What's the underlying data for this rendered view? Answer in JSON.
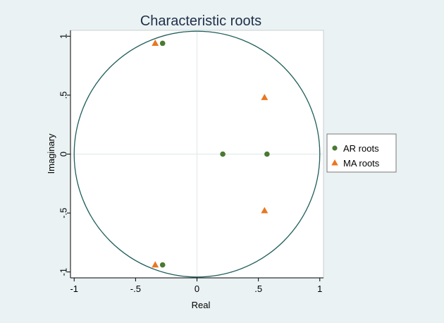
{
  "chart_data": {
    "type": "scatter",
    "title": "Characteristic roots",
    "xlabel": "Real",
    "ylabel": "Imaginary",
    "xlim": [
      -1.03,
      1.03
    ],
    "ylim": [
      -1.05,
      1.05
    ],
    "xticks": [
      -1,
      -0.5,
      0,
      0.5,
      1
    ],
    "xtick_labels": [
      "-1",
      "-.5",
      "0",
      ".5",
      "1"
    ],
    "yticks": [
      -1,
      -0.5,
      0,
      0.5,
      1
    ],
    "ytick_labels": [
      "-1",
      "-.5",
      "0",
      ".5",
      "1"
    ],
    "grid": true,
    "unit_circle": true,
    "legend_position": "right",
    "series": [
      {
        "name": "AR roots",
        "marker": "circle",
        "color": "#4a7a32",
        "points": [
          {
            "x": -0.28,
            "y": 0.94
          },
          {
            "x": -0.28,
            "y": -0.94
          },
          {
            "x": 0.21,
            "y": 0.0
          },
          {
            "x": 0.57,
            "y": 0.0
          }
        ]
      },
      {
        "name": "MA roots",
        "marker": "triangle",
        "color": "#e87722",
        "points": [
          {
            "x": -0.34,
            "y": 0.94
          },
          {
            "x": -0.34,
            "y": -0.94
          },
          {
            "x": 0.55,
            "y": 0.48
          },
          {
            "x": 0.55,
            "y": -0.48
          }
        ]
      }
    ]
  },
  "colors": {
    "circle": "#1f5f5b",
    "grid": "#dde7e7",
    "plot_background": "#ffffff",
    "page_background": "#eaf2f3"
  }
}
